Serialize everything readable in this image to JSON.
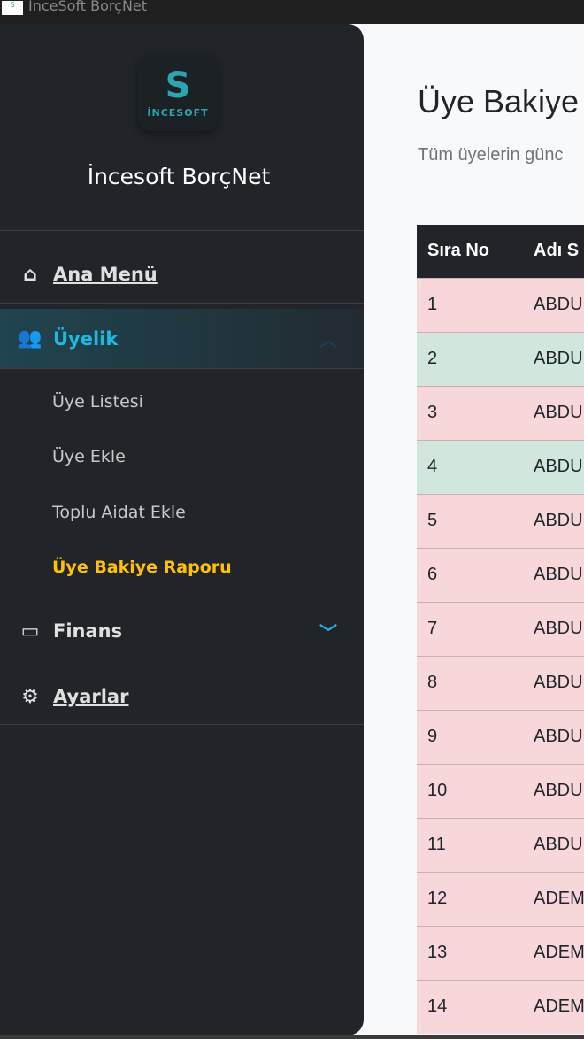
{
  "window": {
    "title": "İnceSoft BorçNet"
  },
  "sidebar": {
    "logo_text": "İNCESOFT",
    "brand": "İncesoft BorçNet",
    "items": [
      {
        "label": "Ana Menü",
        "icon": "home-icon"
      },
      {
        "label": "Üyelik",
        "icon": "users-icon",
        "expanded": true
      },
      {
        "label": "Finans",
        "icon": "wallet-icon",
        "expanded": false
      },
      {
        "label": "Ayarlar",
        "icon": "gear-icon"
      }
    ],
    "subitems": [
      "Üye Listesi",
      "Üye Ekle",
      "Toplu Aidat Ekle",
      "Üye Bakiye Raporu"
    ],
    "active_subitem": "Üye Bakiye Raporu"
  },
  "colors": {
    "accent": "#1fb8e0",
    "active_sub": "#ffc107",
    "row_debt": "#f8d7da",
    "row_ok": "#d1e7dd"
  },
  "main": {
    "title": "Üye Bakiye",
    "subtitle": "Tüm üyelerin günc",
    "table": {
      "headers": [
        "Sıra No",
        "Adı S"
      ],
      "rows": [
        {
          "no": "1",
          "name": "ABDU",
          "status": "red"
        },
        {
          "no": "2",
          "name": "ABDU",
          "status": "green"
        },
        {
          "no": "3",
          "name": "ABDU",
          "status": "red"
        },
        {
          "no": "4",
          "name": "ABDU",
          "status": "green"
        },
        {
          "no": "5",
          "name": "ABDU",
          "status": "red"
        },
        {
          "no": "6",
          "name": "ABDU",
          "status": "red"
        },
        {
          "no": "7",
          "name": "ABDU",
          "status": "red"
        },
        {
          "no": "8",
          "name": "ABDU",
          "status": "red"
        },
        {
          "no": "9",
          "name": "ABDU",
          "status": "red"
        },
        {
          "no": "10",
          "name": "ABDU",
          "status": "red"
        },
        {
          "no": "11",
          "name": "ABDU",
          "status": "red"
        },
        {
          "no": "12",
          "name": "ADEM",
          "status": "red"
        },
        {
          "no": "13",
          "name": "ADEM",
          "status": "red"
        },
        {
          "no": "14",
          "name": "ADEM",
          "status": "red"
        }
      ]
    }
  }
}
